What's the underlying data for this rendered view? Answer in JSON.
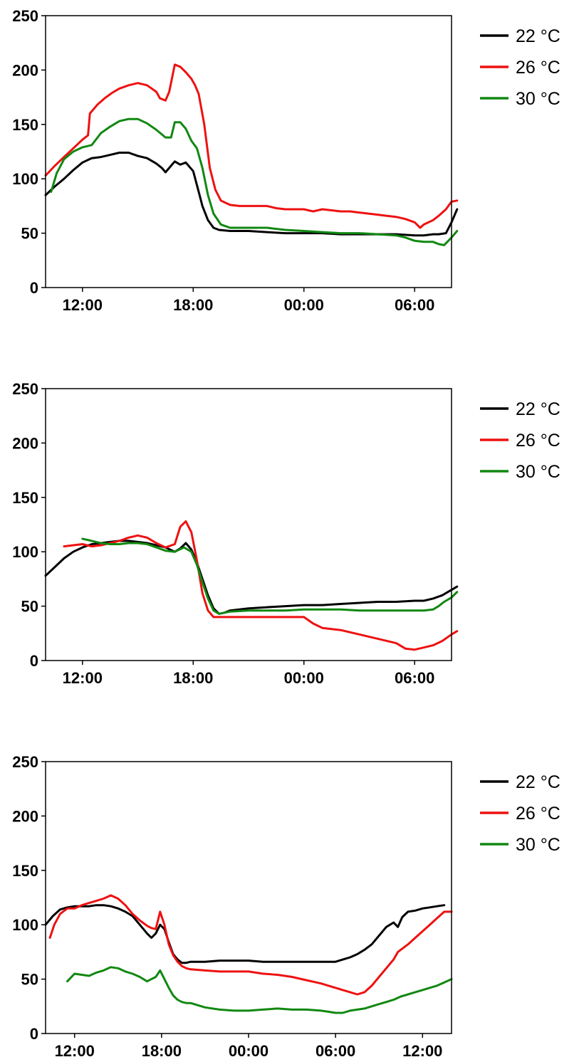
{
  "chart_data": [
    {
      "type": "line",
      "title": "",
      "xlabel": "",
      "ylabel": "",
      "xlim": [
        10.0,
        32.0
      ],
      "ylim": [
        0,
        250
      ],
      "yticks": [
        0,
        50,
        100,
        150,
        200,
        250
      ],
      "xticks": [
        {
          "value": 12,
          "label": "12:00"
        },
        {
          "value": 18,
          "label": "18:00"
        },
        {
          "value": 24,
          "label": "00:00"
        },
        {
          "value": 30,
          "label": "06:00"
        }
      ],
      "grid": false,
      "legend": "right",
      "series": [
        {
          "name": "22 °C",
          "color": "#000000",
          "x": [
            10.0,
            10.5,
            11.0,
            11.5,
            12.0,
            12.5,
            13.0,
            13.5,
            14.0,
            14.5,
            15.0,
            15.5,
            16.0,
            16.3,
            16.5,
            16.8,
            17.0,
            17.3,
            17.6,
            18.0,
            18.3,
            18.5,
            18.8,
            19.1,
            19.4,
            20.0,
            21.0,
            22.0,
            23.0,
            24.0,
            25.0,
            26.0,
            27.0,
            28.0,
            29.0,
            30.0,
            30.5,
            31.0,
            31.3,
            31.7,
            32.0,
            32.3
          ],
          "y": [
            85,
            93,
            100,
            108,
            115,
            119,
            120,
            122,
            124,
            124,
            121,
            119,
            114,
            110,
            106,
            112,
            116,
            113,
            115,
            107,
            88,
            75,
            62,
            55,
            53,
            52,
            52,
            51,
            50,
            50,
            50,
            49,
            49,
            49,
            49,
            48,
            48,
            49,
            49,
            50,
            60,
            72
          ]
        },
        {
          "name": "26 °C",
          "color": "#ee1111",
          "x": [
            10.0,
            10.5,
            11.0,
            11.5,
            12.0,
            12.3,
            12.4,
            12.8,
            13.2,
            13.6,
            14.0,
            14.5,
            15.0,
            15.5,
            16.0,
            16.2,
            16.5,
            16.7,
            17.0,
            17.3,
            17.6,
            17.9,
            18.1,
            18.3,
            18.6,
            18.9,
            19.2,
            19.5,
            20.0,
            20.5,
            21.0,
            21.5,
            22.0,
            22.5,
            23.0,
            23.5,
            24.0,
            24.5,
            25.0,
            25.5,
            26.0,
            26.5,
            27.0,
            27.5,
            28.0,
            28.5,
            29.0,
            29.5,
            30.0,
            30.3,
            30.5,
            31.0,
            31.3,
            31.7,
            32.0,
            32.3
          ],
          "y": [
            103,
            112,
            120,
            128,
            136,
            140,
            160,
            168,
            174,
            179,
            183,
            186,
            188,
            186,
            180,
            174,
            172,
            180,
            205,
            203,
            198,
            192,
            186,
            178,
            150,
            110,
            90,
            80,
            76,
            75,
            75,
            75,
            75,
            73,
            72,
            72,
            72,
            70,
            72,
            71,
            70,
            70,
            69,
            68,
            67,
            66,
            65,
            63,
            60,
            55,
            58,
            62,
            66,
            72,
            79,
            80
          ]
        },
        {
          "name": "30 °C",
          "color": "#118811",
          "x": [
            10.3,
            10.6,
            11.0,
            11.5,
            12.0,
            12.5,
            13.0,
            13.5,
            14.0,
            14.5,
            15.0,
            15.5,
            16.0,
            16.5,
            16.8,
            17.0,
            17.3,
            17.6,
            17.9,
            18.2,
            18.5,
            18.8,
            19.1,
            19.5,
            20.0,
            21.0,
            22.0,
            23.0,
            24.0,
            25.0,
            26.0,
            27.0,
            28.0,
            29.0,
            29.5,
            30.0,
            30.5,
            31.0,
            31.3,
            31.6,
            32.0,
            32.3
          ],
          "y": [
            88,
            105,
            118,
            125,
            129,
            131,
            142,
            148,
            153,
            155,
            155,
            151,
            145,
            138,
            138,
            152,
            152,
            146,
            135,
            128,
            110,
            85,
            68,
            58,
            55,
            55,
            55,
            53,
            52,
            51,
            50,
            50,
            49,
            48,
            46,
            43,
            42,
            42,
            40,
            39,
            46,
            52
          ]
        }
      ]
    },
    {
      "type": "line",
      "title": "",
      "xlabel": "",
      "ylabel": "",
      "xlim": [
        10.0,
        32.0
      ],
      "ylim": [
        0,
        250
      ],
      "yticks": [
        0,
        50,
        100,
        150,
        200,
        250
      ],
      "xticks": [
        {
          "value": 12,
          "label": "12:00"
        },
        {
          "value": 18,
          "label": "18:00"
        },
        {
          "value": 24,
          "label": "00:00"
        },
        {
          "value": 30,
          "label": "06:00"
        }
      ],
      "grid": false,
      "legend": "right",
      "series": [
        {
          "name": "22 °C",
          "color": "#000000",
          "x": [
            10.0,
            10.5,
            11.0,
            11.5,
            12.0,
            12.5,
            13.0,
            13.5,
            14.0,
            14.5,
            15.0,
            15.5,
            16.0,
            16.5,
            17.0,
            17.3,
            17.6,
            17.9,
            18.2,
            18.5,
            18.8,
            19.1,
            19.4,
            19.7,
            20.0,
            21.0,
            22.0,
            23.0,
            24.0,
            25.0,
            26.0,
            27.0,
            28.0,
            29.0,
            30.0,
            30.5,
            31.0,
            31.5,
            32.0,
            32.3
          ],
          "y": [
            78,
            86,
            94,
            100,
            104,
            107,
            108,
            109,
            110,
            110,
            109,
            108,
            106,
            104,
            100,
            103,
            108,
            102,
            90,
            75,
            60,
            48,
            43,
            44,
            46,
            48,
            49,
            50,
            51,
            51,
            52,
            53,
            54,
            54,
            55,
            55,
            57,
            60,
            65,
            68
          ]
        },
        {
          "name": "26 °C",
          "color": "#ee1111",
          "x": [
            11.0,
            11.5,
            12.0,
            12.5,
            13.0,
            13.5,
            14.0,
            14.5,
            15.0,
            15.5,
            16.0,
            16.5,
            17.0,
            17.3,
            17.6,
            17.9,
            18.2,
            18.5,
            18.8,
            19.1,
            19.4,
            19.7,
            20.0,
            21.0,
            22.0,
            23.0,
            24.0,
            24.5,
            25.0,
            26.0,
            27.0,
            28.0,
            29.0,
            29.5,
            30.0,
            30.5,
            31.0,
            31.5,
            32.0,
            32.3
          ],
          "y": [
            105,
            106,
            107,
            105,
            106,
            108,
            110,
            113,
            115,
            113,
            108,
            104,
            107,
            123,
            128,
            118,
            92,
            62,
            46,
            40,
            40,
            40,
            40,
            40,
            40,
            40,
            40,
            34,
            30,
            28,
            24,
            20,
            16,
            11,
            10,
            12,
            14,
            18,
            24,
            27
          ]
        },
        {
          "name": "30 °C",
          "color": "#118811",
          "x": [
            12.0,
            12.5,
            13.0,
            13.5,
            14.0,
            14.5,
            15.0,
            15.5,
            16.0,
            16.5,
            17.0,
            17.5,
            17.9,
            18.2,
            18.5,
            18.8,
            19.1,
            19.4,
            19.7,
            20.0,
            21.0,
            22.0,
            23.0,
            24.0,
            25.0,
            26.0,
            27.0,
            28.0,
            29.0,
            30.0,
            30.5,
            31.0,
            31.3,
            31.6,
            32.0,
            32.3
          ],
          "y": [
            112,
            110,
            108,
            107,
            107,
            108,
            108,
            107,
            104,
            101,
            100,
            104,
            100,
            88,
            72,
            57,
            46,
            43,
            44,
            45,
            46,
            46,
            46,
            47,
            47,
            47,
            46,
            46,
            46,
            46,
            46,
            47,
            50,
            54,
            58,
            63
          ]
        }
      ]
    },
    {
      "type": "line",
      "title": "",
      "xlabel": "",
      "ylabel": "",
      "xlim": [
        10.0,
        38.0
      ],
      "ylim": [
        0,
        250
      ],
      "yticks": [
        0,
        50,
        100,
        150,
        200,
        250
      ],
      "xticks": [
        {
          "value": 12,
          "label": "12:00"
        },
        {
          "value": 18,
          "label": "18:00"
        },
        {
          "value": 24,
          "label": "00:00"
        },
        {
          "value": 30,
          "label": "06:00"
        },
        {
          "value": 36,
          "label": "12:00"
        }
      ],
      "grid": false,
      "legend": "right",
      "series": [
        {
          "name": "22 °C",
          "color": "#000000",
          "x": [
            10.0,
            10.5,
            11.0,
            11.5,
            12.0,
            12.5,
            13.0,
            13.5,
            14.0,
            14.5,
            15.0,
            15.5,
            16.0,
            16.5,
            17.0,
            17.3,
            17.6,
            17.9,
            18.2,
            18.5,
            18.8,
            19.1,
            19.4,
            19.7,
            20.0,
            21.0,
            22.0,
            23.0,
            24.0,
            25.0,
            26.0,
            27.0,
            28.0,
            29.0,
            29.5,
            30.0,
            30.5,
            31.0,
            31.5,
            32.0,
            32.5,
            33.0,
            33.5,
            34.0,
            34.3,
            34.6,
            35.0,
            35.5,
            36.0,
            36.5,
            37.0,
            37.5
          ],
          "y": [
            100,
            108,
            114,
            116,
            117,
            117,
            117,
            118,
            118,
            117,
            115,
            112,
            108,
            100,
            92,
            88,
            92,
            100,
            96,
            84,
            73,
            68,
            65,
            65,
            66,
            66,
            67,
            67,
            67,
            66,
            66,
            66,
            66,
            66,
            66,
            66,
            68,
            70,
            73,
            77,
            82,
            90,
            98,
            102,
            98,
            107,
            112,
            113,
            115,
            116,
            117,
            118
          ]
        },
        {
          "name": "26 °C",
          "color": "#ee1111",
          "x": [
            10.3,
            10.6,
            11.0,
            11.5,
            12.0,
            12.5,
            13.0,
            13.5,
            14.0,
            14.5,
            15.0,
            15.5,
            16.0,
            16.5,
            17.0,
            17.3,
            17.6,
            17.9,
            18.2,
            18.5,
            18.8,
            19.1,
            19.4,
            19.7,
            20.0,
            21.0,
            22.0,
            23.0,
            24.0,
            25.0,
            26.0,
            27.0,
            28.0,
            29.0,
            29.5,
            30.0,
            30.5,
            31.0,
            31.5,
            32.0,
            32.5,
            33.0,
            33.5,
            34.0,
            34.3,
            34.6,
            35.0,
            35.5,
            36.0,
            36.5,
            37.0,
            37.5,
            38.0
          ],
          "y": [
            88,
            100,
            110,
            115,
            115,
            118,
            120,
            122,
            124,
            127,
            124,
            118,
            110,
            104,
            99,
            97,
            96,
            112,
            100,
            82,
            72,
            66,
            62,
            60,
            59,
            58,
            57,
            57,
            57,
            55,
            54,
            52,
            49,
            46,
            44,
            42,
            40,
            38,
            36,
            38,
            44,
            52,
            60,
            68,
            75,
            78,
            82,
            88,
            94,
            100,
            106,
            112,
            112
          ]
        },
        {
          "name": "30 °C",
          "color": "#118811",
          "x": [
            11.5,
            12.0,
            12.5,
            13.0,
            13.5,
            14.0,
            14.5,
            15.0,
            15.5,
            16.0,
            16.5,
            17.0,
            17.3,
            17.6,
            17.9,
            18.2,
            18.5,
            18.8,
            19.1,
            19.4,
            19.7,
            20.0,
            21.0,
            22.0,
            23.0,
            24.0,
            25.0,
            26.0,
            27.0,
            28.0,
            29.0,
            29.5,
            30.0,
            30.5,
            31.0,
            31.5,
            32.0,
            32.5,
            33.0,
            33.5,
            34.0,
            34.5,
            35.0,
            35.5,
            36.0,
            36.5,
            37.0,
            37.5,
            38.0
          ],
          "y": [
            48,
            55,
            54,
            53,
            56,
            58,
            61,
            60,
            57,
            55,
            52,
            48,
            50,
            52,
            58,
            50,
            42,
            35,
            31,
            29,
            28,
            28,
            24,
            22,
            21,
            21,
            22,
            23,
            22,
            22,
            21,
            20,
            19,
            19,
            21,
            22,
            23,
            25,
            27,
            29,
            31,
            34,
            36,
            38,
            40,
            42,
            44,
            47,
            50
          ]
        }
      ]
    }
  ]
}
